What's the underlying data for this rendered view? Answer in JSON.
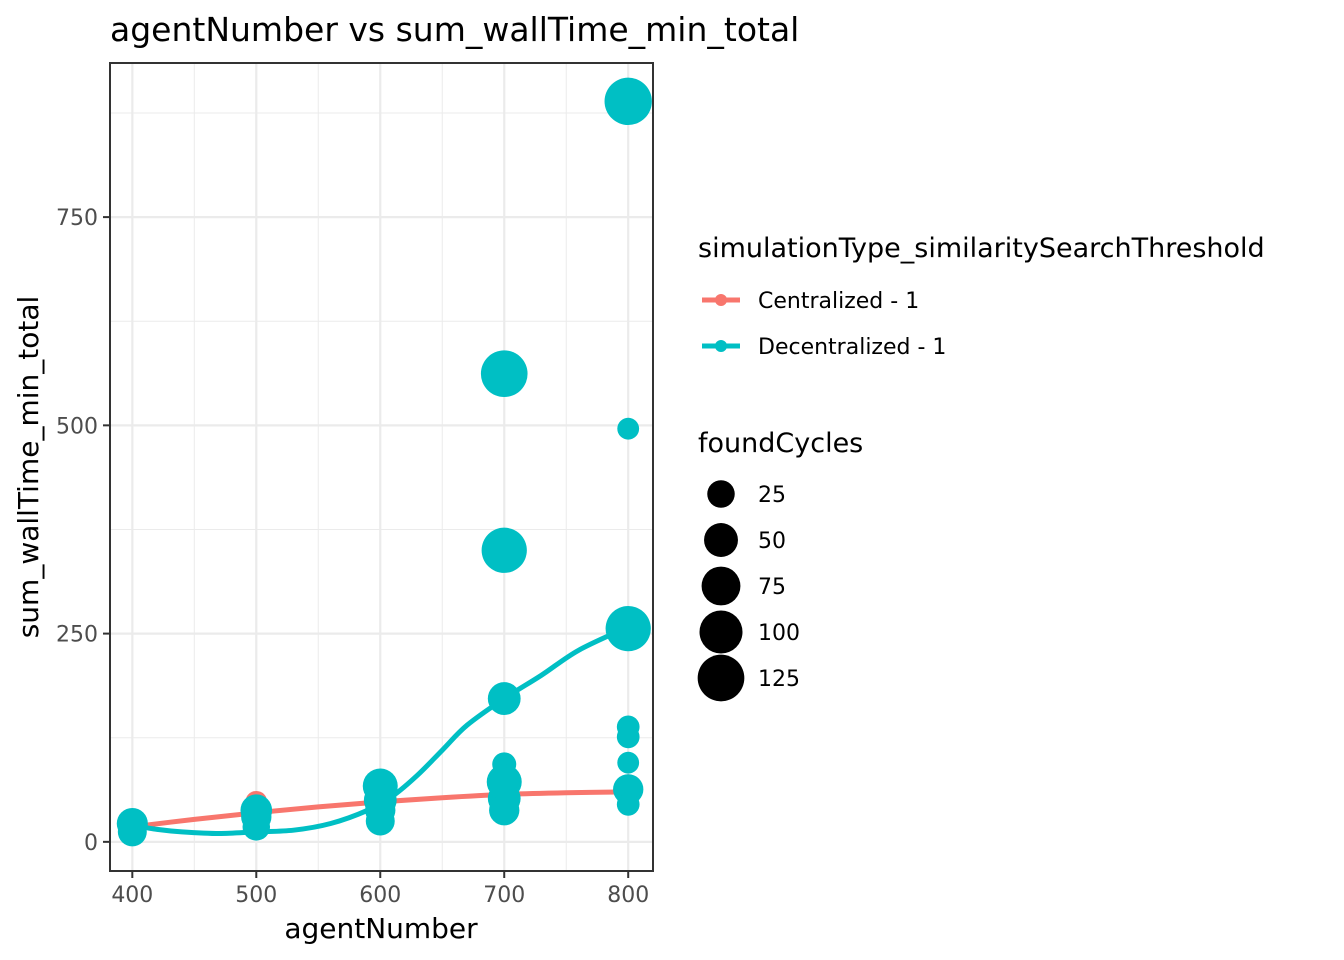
{
  "chart_data": {
    "type": "scatter",
    "title": "agentNumber  vs  sum_wallTime_min_total",
    "xlabel": "agentNumber",
    "ylabel": "sum_wallTime_min_total",
    "xlim": [
      382,
      820
    ],
    "ylim": [
      -35,
      935
    ],
    "x_ticks": [
      400,
      500,
      600,
      700,
      800
    ],
    "x_tick_labels": [
      "400",
      "500",
      "600",
      "700",
      "800"
    ],
    "x_minor_ticks": [
      450,
      550,
      650,
      750
    ],
    "y_ticks": [
      0,
      250,
      500,
      750
    ],
    "y_tick_labels": [
      "0",
      "250",
      "500",
      "750"
    ],
    "y_minor_ticks": [
      125,
      375,
      625,
      875
    ],
    "grid": true,
    "legend_placement": "right",
    "color_legend": {
      "title": "simulationType_similaritySearchThreshold",
      "entries": [
        {
          "label": "Centralized - 1",
          "color": "#F8766D"
        },
        {
          "label": "Decentralized - 1",
          "color": "#00BFC4"
        }
      ]
    },
    "size_legend": {
      "title": "foundCycles",
      "entries": [
        {
          "label": "25",
          "value": 25
        },
        {
          "label": "50",
          "value": 50
        },
        {
          "label": "75",
          "value": 75
        },
        {
          "label": "100",
          "value": 100
        },
        {
          "label": "125",
          "value": 125
        }
      ]
    },
    "series": [
      {
        "name": "Centralized - 1",
        "color": "#F8766D",
        "points": [
          {
            "x": 400,
            "y": 18,
            "size": 10
          },
          {
            "x": 500,
            "y": 48,
            "size": 10
          },
          {
            "x": 500,
            "y": 42,
            "size": 10
          },
          {
            "x": 600,
            "y": 58,
            "size": 10
          },
          {
            "x": 700,
            "y": 60,
            "size": 10
          },
          {
            "x": 800,
            "y": 68,
            "size": 10
          }
        ],
        "trend": [
          {
            "x": 400,
            "y": 18
          },
          {
            "x": 450,
            "y": 27
          },
          {
            "x": 500,
            "y": 35
          },
          {
            "x": 550,
            "y": 42
          },
          {
            "x": 600,
            "y": 48
          },
          {
            "x": 650,
            "y": 53
          },
          {
            "x": 700,
            "y": 57
          },
          {
            "x": 750,
            "y": 59
          },
          {
            "x": 800,
            "y": 60
          }
        ]
      },
      {
        "name": "Decentralized - 1",
        "color": "#00BFC4",
        "points": [
          {
            "x": 400,
            "y": 22,
            "size": 38
          },
          {
            "x": 400,
            "y": 12,
            "size": 30
          },
          {
            "x": 500,
            "y": 38,
            "size": 40
          },
          {
            "x": 500,
            "y": 30,
            "size": 35
          },
          {
            "x": 500,
            "y": 18,
            "size": 25
          },
          {
            "x": 600,
            "y": 67,
            "size": 55
          },
          {
            "x": 600,
            "y": 50,
            "size": 45
          },
          {
            "x": 600,
            "y": 38,
            "size": 35
          },
          {
            "x": 600,
            "y": 25,
            "size": 30
          },
          {
            "x": 700,
            "y": 562,
            "size": 125
          },
          {
            "x": 700,
            "y": 350,
            "size": 115
          },
          {
            "x": 700,
            "y": 172,
            "size": 45
          },
          {
            "x": 700,
            "y": 93,
            "size": 15
          },
          {
            "x": 700,
            "y": 72,
            "size": 55
          },
          {
            "x": 700,
            "y": 52,
            "size": 45
          },
          {
            "x": 700,
            "y": 38,
            "size": 35
          },
          {
            "x": 800,
            "y": 889,
            "size": 130
          },
          {
            "x": 800,
            "y": 496,
            "size": 10
          },
          {
            "x": 800,
            "y": 256,
            "size": 115
          },
          {
            "x": 800,
            "y": 138,
            "size": 12
          },
          {
            "x": 800,
            "y": 126,
            "size": 12
          },
          {
            "x": 800,
            "y": 95,
            "size": 10
          },
          {
            "x": 800,
            "y": 63,
            "size": 35
          },
          {
            "x": 800,
            "y": 45,
            "size": 12
          }
        ],
        "trend": [
          {
            "x": 400,
            "y": 20
          },
          {
            "x": 420,
            "y": 15
          },
          {
            "x": 440,
            "y": 12
          },
          {
            "x": 470,
            "y": 10
          },
          {
            "x": 500,
            "y": 12
          },
          {
            "x": 530,
            "y": 14
          },
          {
            "x": 560,
            "y": 22
          },
          {
            "x": 590,
            "y": 38
          },
          {
            "x": 610,
            "y": 55
          },
          {
            "x": 630,
            "y": 80
          },
          {
            "x": 650,
            "y": 110
          },
          {
            "x": 670,
            "y": 140
          },
          {
            "x": 700,
            "y": 172
          },
          {
            "x": 730,
            "y": 200
          },
          {
            "x": 760,
            "y": 230
          },
          {
            "x": 800,
            "y": 258
          }
        ]
      }
    ]
  }
}
